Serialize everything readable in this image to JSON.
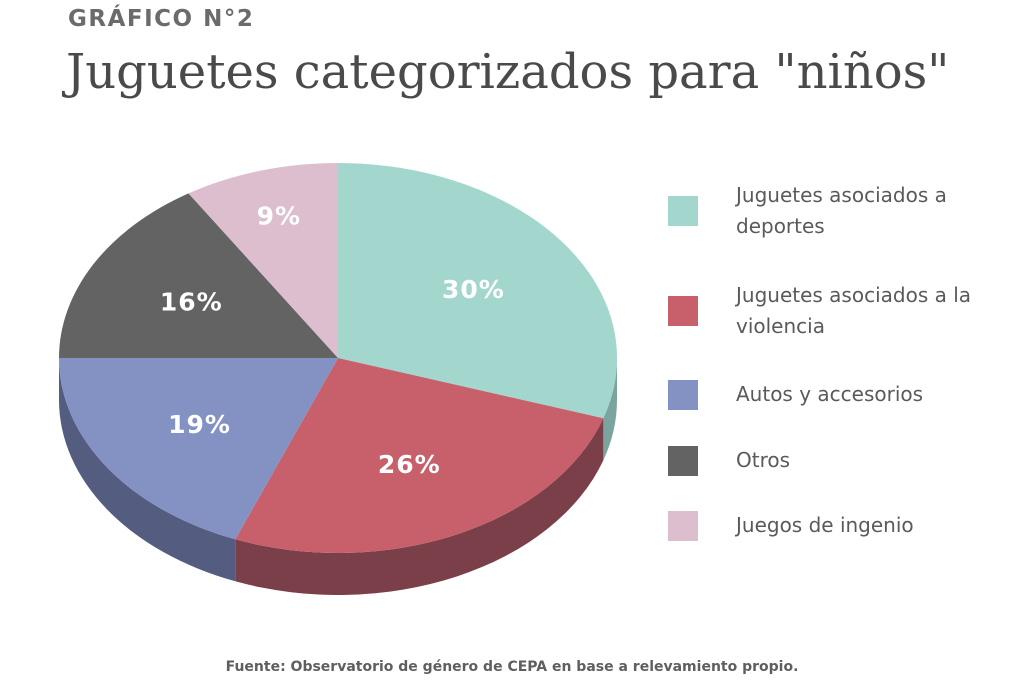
{
  "header": {
    "kicker": "GRÁFICO N°2",
    "title": "Juguetes categorizados para \"niños\""
  },
  "chart_data": {
    "type": "pie",
    "title": "Juguetes categorizados para \"niños\"",
    "unit": "%",
    "legend_position": "right",
    "slices": [
      {
        "key": "deportes",
        "label": "Juguetes asociados a deportes",
        "value": 30,
        "display": "30%",
        "color": "#a3d7ce",
        "side_color": "#7aa49d"
      },
      {
        "key": "violencia",
        "label": "Juguetes asociados a la violencia",
        "value": 26,
        "display": "26%",
        "color": "#c8606b",
        "side_color": "#7a3f48"
      },
      {
        "key": "autos",
        "label": "Autos y accesorios",
        "value": 19,
        "display": "19%",
        "color": "#8491c3",
        "side_color": "#545c80"
      },
      {
        "key": "otros",
        "label": "Otros",
        "value": 16,
        "display": "16%",
        "color": "#636363",
        "side_color": "#404040"
      },
      {
        "key": "ingenio",
        "label": "Juegos de ingenio",
        "value": 9,
        "display": "9%",
        "color": "#ddbecf",
        "side_color": "#a48c99"
      }
    ]
  },
  "footer": {
    "source": "Fuente: Observatorio de género de CEPA en base a relevamiento propio."
  }
}
